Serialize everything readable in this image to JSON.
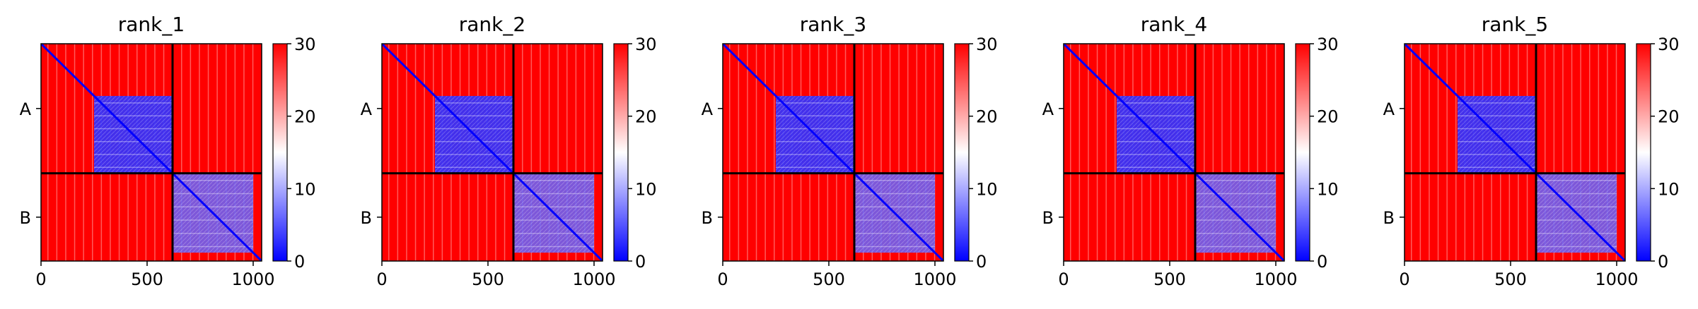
{
  "figure": {
    "colormap": {
      "low": "#0000ff",
      "mid": "#ffffff",
      "high": "#ff0000"
    },
    "block_boundary_color": "#000000"
  },
  "chart_data": [
    {
      "type": "heatmap",
      "title": "rank_1",
      "xlim": [
        0,
        1040
      ],
      "x_ticks": [
        0,
        500,
        1000
      ],
      "x_tick_labels": [
        "0",
        "500",
        "1000"
      ],
      "chains": [
        {
          "name": "A",
          "start": 0,
          "end": 620
        },
        {
          "name": "B",
          "start": 620,
          "end": 1040
        }
      ],
      "chain_boundary": 620,
      "colorbar": {
        "range": [
          0,
          30
        ],
        "ticks": [
          0,
          10,
          20,
          30
        ],
        "tick_labels": [
          "0",
          "10",
          "20",
          "30"
        ]
      },
      "low_error_regions": [
        {
          "x": [
            250,
            620
          ],
          "y": [
            250,
            620
          ],
          "level": 3
        },
        {
          "x": [
            620,
            1000
          ],
          "y": [
            620,
            1000
          ],
          "level": 6
        }
      ],
      "diagonal_value": 0
    },
    {
      "type": "heatmap",
      "title": "rank_2",
      "xlim": [
        0,
        1040
      ],
      "x_ticks": [
        0,
        500,
        1000
      ],
      "x_tick_labels": [
        "0",
        "500",
        "1000"
      ],
      "chains": [
        {
          "name": "A",
          "start": 0,
          "end": 620
        },
        {
          "name": "B",
          "start": 620,
          "end": 1040
        }
      ],
      "chain_boundary": 620,
      "colorbar": {
        "range": [
          0,
          30
        ],
        "ticks": [
          0,
          10,
          20,
          30
        ],
        "tick_labels": [
          "0",
          "10",
          "20",
          "30"
        ]
      },
      "low_error_regions": [
        {
          "x": [
            250,
            620
          ],
          "y": [
            250,
            620
          ],
          "level": 3
        },
        {
          "x": [
            620,
            1000
          ],
          "y": [
            620,
            1000
          ],
          "level": 6
        }
      ],
      "diagonal_value": 0
    },
    {
      "type": "heatmap",
      "title": "rank_3",
      "xlim": [
        0,
        1040
      ],
      "x_ticks": [
        0,
        500,
        1000
      ],
      "x_tick_labels": [
        "0",
        "500",
        "1000"
      ],
      "chains": [
        {
          "name": "A",
          "start": 0,
          "end": 620
        },
        {
          "name": "B",
          "start": 620,
          "end": 1040
        }
      ],
      "chain_boundary": 620,
      "colorbar": {
        "range": [
          0,
          30
        ],
        "ticks": [
          0,
          10,
          20,
          30
        ],
        "tick_labels": [
          "0",
          "10",
          "20",
          "30"
        ]
      },
      "low_error_regions": [
        {
          "x": [
            250,
            620
          ],
          "y": [
            250,
            620
          ],
          "level": 3
        },
        {
          "x": [
            620,
            1000
          ],
          "y": [
            620,
            1000
          ],
          "level": 6
        }
      ],
      "diagonal_value": 0
    },
    {
      "type": "heatmap",
      "title": "rank_4",
      "xlim": [
        0,
        1040
      ],
      "x_ticks": [
        0,
        500,
        1000
      ],
      "x_tick_labels": [
        "0",
        "500",
        "1000"
      ],
      "chains": [
        {
          "name": "A",
          "start": 0,
          "end": 620
        },
        {
          "name": "B",
          "start": 620,
          "end": 1040
        }
      ],
      "chain_boundary": 620,
      "colorbar": {
        "range": [
          0,
          30
        ],
        "ticks": [
          0,
          10,
          20,
          30
        ],
        "tick_labels": [
          "0",
          "10",
          "20",
          "30"
        ]
      },
      "low_error_regions": [
        {
          "x": [
            250,
            620
          ],
          "y": [
            250,
            620
          ],
          "level": 3
        },
        {
          "x": [
            620,
            1000
          ],
          "y": [
            620,
            1000
          ],
          "level": 6
        }
      ],
      "diagonal_value": 0
    },
    {
      "type": "heatmap",
      "title": "rank_5",
      "xlim": [
        0,
        1040
      ],
      "x_ticks": [
        0,
        500,
        1000
      ],
      "x_tick_labels": [
        "0",
        "500",
        "1000"
      ],
      "chains": [
        {
          "name": "A",
          "start": 0,
          "end": 620
        },
        {
          "name": "B",
          "start": 620,
          "end": 1040
        }
      ],
      "chain_boundary": 620,
      "colorbar": {
        "range": [
          0,
          30
        ],
        "ticks": [
          0,
          10,
          20,
          30
        ],
        "tick_labels": [
          "0",
          "10",
          "20",
          "30"
        ]
      },
      "low_error_regions": [
        {
          "x": [
            250,
            620
          ],
          "y": [
            250,
            620
          ],
          "level": 3
        },
        {
          "x": [
            620,
            1000
          ],
          "y": [
            620,
            1000
          ],
          "level": 6
        }
      ],
      "diagonal_value": 0
    }
  ]
}
